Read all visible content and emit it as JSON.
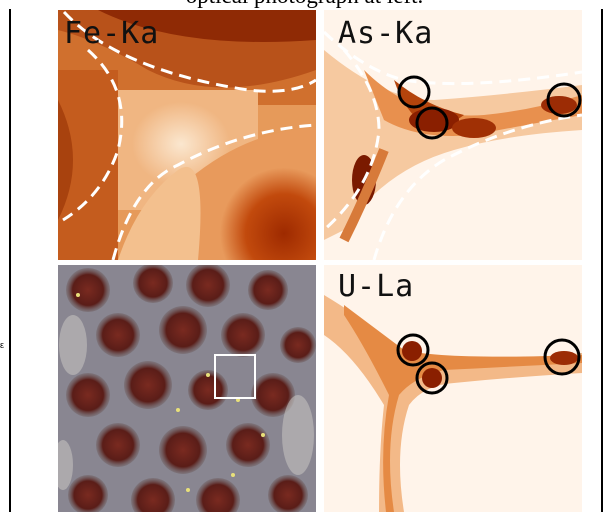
{
  "caption": "optical photograph at left.",
  "side_mark": "ε",
  "panels": {
    "fe": {
      "label": "Fe-Ka",
      "colormap": "orange-heat"
    },
    "as": {
      "label": "As-Ka",
      "colormap": "orange-heat",
      "markers": 3
    },
    "optical": {
      "label": "",
      "inset_box_color": "#ffffff"
    },
    "u": {
      "label": "U-La",
      "colormap": "orange-heat",
      "markers": 3
    }
  },
  "colors": {
    "marker": "#000000",
    "boundary": "#ffffff",
    "heat_dark": "#a62a00",
    "heat_light": "#fff3e6"
  }
}
